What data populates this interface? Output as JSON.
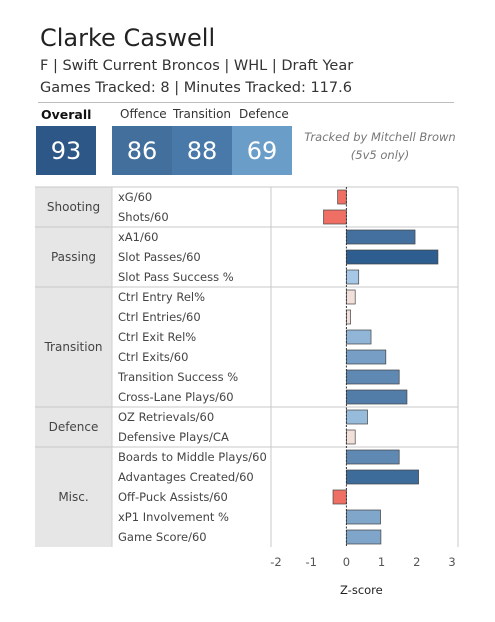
{
  "header": {
    "name": "Clarke Caswell",
    "subtitle_line1": "F | Swift Current Broncos | WHL | Draft Year",
    "subtitle_line2": "Games Tracked: 8 | Minutes Tracked: 117.6"
  },
  "scores": {
    "overall_label": "Overall",
    "offence_label": "Offence",
    "transition_label": "Transition",
    "defence_label": "Defence",
    "overall": "93",
    "offence": "86",
    "transition": "88",
    "defence": "69",
    "colors": {
      "overall": "#2c5786",
      "offence": "#426f9c",
      "transition": "#4879a9",
      "defence": "#6b9dc9"
    }
  },
  "note": {
    "line1": "Tracked by Mitchell Brown",
    "line2": "(5v5 only)"
  },
  "chart_data": {
    "type": "bar",
    "orientation": "horizontal",
    "xlabel": "Z-score",
    "xlim": [
      -2,
      3
    ],
    "xticks": [
      "-2",
      "-1",
      "0",
      "1",
      "2",
      "3"
    ],
    "groups": [
      {
        "name": "Shooting",
        "metrics": [
          {
            "label": "xG/60",
            "value": -0.25
          },
          {
            "label": "Shots/60",
            "value": -0.65
          }
        ]
      },
      {
        "name": "Passing",
        "metrics": [
          {
            "label": "xA1/60",
            "value": 1.95
          },
          {
            "label": "Slot Passes/60",
            "value": 2.6
          },
          {
            "label": "Slot Pass Success %",
            "value": 0.35
          }
        ]
      },
      {
        "name": "Transition",
        "metrics": [
          {
            "label": "Ctrl Entry Rel%",
            "value": 0.25
          },
          {
            "label": "Ctrl Entries/60",
            "value": 0.12
          },
          {
            "label": "Ctrl Exit Rel%",
            "value": 0.7
          },
          {
            "label": "Ctrl Exits/60",
            "value": 1.12
          },
          {
            "label": "Transition Success %",
            "value": 1.5
          },
          {
            "label": "Cross-Lane Plays/60",
            "value": 1.72
          }
        ]
      },
      {
        "name": "Defence",
        "metrics": [
          {
            "label": "OZ Retrievals/60",
            "value": 0.6
          },
          {
            "label": "Defensive Plays/CA",
            "value": 0.25
          }
        ]
      },
      {
        "name": "Misc.",
        "metrics": [
          {
            "label": "Boards to Middle Plays/60",
            "value": 1.5
          },
          {
            "label": "Advantages Created/60",
            "value": 2.05
          },
          {
            "label": "Off-Puck Assists/60",
            "value": -0.38
          },
          {
            "label": "xP1 Involvement %",
            "value": 0.97
          },
          {
            "label": "Game Score/60",
            "value": 0.98
          }
        ]
      }
    ],
    "color_scale": {
      "negative": "#ef6f64",
      "neutral": "#f1dfda",
      "low": "#a9cbe8",
      "high": "#2e5d8f"
    }
  }
}
